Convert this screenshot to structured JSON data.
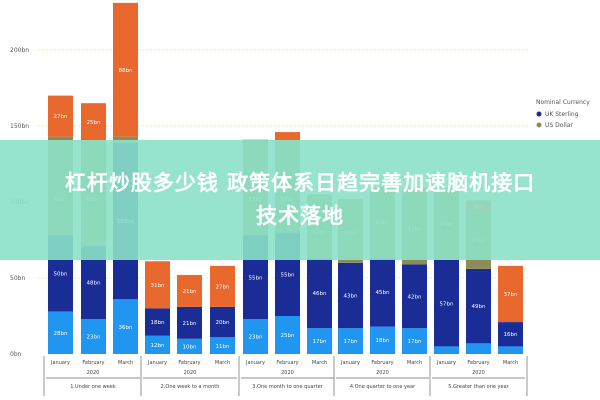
{
  "chart_data": {
    "type": "bar",
    "stacked": true,
    "ylim": [
      0,
      230
    ],
    "yticks": [
      "0bn",
      "50bn",
      "100bn",
      "150bn",
      "200bn"
    ],
    "ytick_values": [
      0,
      50,
      100,
      150,
      200
    ],
    "grid": true,
    "legend": {
      "title": "Nominal Currency",
      "placement": "right",
      "entries": [
        "UK Sterling",
        "US Dollar"
      ]
    },
    "groups": [
      {
        "label": "1.Under one week",
        "year": "2020",
        "months": [
          "January",
          "February",
          "March"
        ]
      },
      {
        "label": "2.One week to a month",
        "year": "2020",
        "months": [
          "January",
          "February",
          "March"
        ]
      },
      {
        "label": "3.One month to one quarter",
        "year": "2020",
        "months": [
          "January",
          "February",
          "March"
        ]
      },
      {
        "label": "4.One quarter to one year",
        "year": "2020",
        "months": [
          "January",
          "February",
          "March"
        ]
      },
      {
        "label": "5.Greater than one year",
        "year": "2020",
        "months": [
          "January",
          "February",
          "March"
        ]
      }
    ],
    "series": [
      {
        "color": "#2196f0",
        "values": [
          28,
          23,
          36,
          12,
          10,
          11,
          23,
          25,
          17,
          17,
          18,
          17,
          5,
          7,
          5
        ]
      },
      {
        "name": "UK Sterling",
        "color": "#1a2c95",
        "values": [
          50,
          48,
          103,
          18,
          21,
          20,
          55,
          55,
          46,
          43,
          45,
          42,
          57,
          49,
          16
        ]
      },
      {
        "name": "US Dollar",
        "color": "#8c8c58",
        "values": [
          65,
          69,
          4,
          0,
          0,
          0,
          63,
          60,
          42,
          40,
          47,
          47,
          47,
          37,
          0
        ]
      },
      {
        "color": "#e8682e",
        "values": [
          27,
          25,
          88,
          31,
          21,
          27,
          0,
          6,
          0,
          2,
          0,
          3,
          0,
          8,
          37
        ]
      }
    ]
  },
  "banner": {
    "line1": "杠杆炒股多少钱 政策体系日趋完善加速脑机接口",
    "line2": "技术落地"
  }
}
